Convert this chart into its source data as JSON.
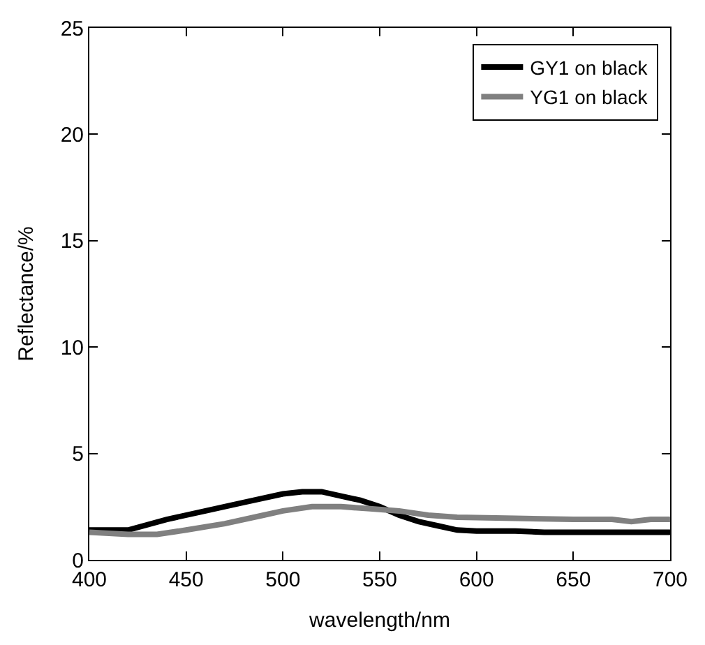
{
  "chart_data": {
    "type": "line",
    "xlabel": "wavelength/nm",
    "ylabel": "Reflectance/%",
    "xlim": [
      400,
      700
    ],
    "xticks": [
      400,
      450,
      500,
      550,
      600,
      650,
      700
    ],
    "ylim": [
      0,
      25
    ],
    "yticks": [
      0,
      5,
      10,
      15,
      20,
      25
    ],
    "legend": "top right",
    "marker": "none",
    "line_style": "solid",
    "series": [
      {
        "name": "GY1 on black",
        "color": "#000000",
        "x": [
          400,
          410,
          420,
          440,
          460,
          480,
          500,
          510,
          520,
          530,
          540,
          550,
          560,
          570,
          580,
          590,
          600,
          620,
          635,
          650,
          700
        ],
        "values": [
          1.4,
          1.4,
          1.4,
          1.9,
          2.3,
          2.7,
          3.1,
          3.2,
          3.2,
          3.0,
          2.8,
          2.5,
          2.1,
          1.8,
          1.6,
          1.4,
          1.35,
          1.35,
          1.3,
          1.3,
          1.3
        ]
      },
      {
        "name": "YG1 on black",
        "color": "#808080",
        "x": [
          400,
          420,
          435,
          450,
          470,
          490,
          500,
          515,
          530,
          545,
          560,
          575,
          590,
          620,
          650,
          670,
          680,
          690,
          700
        ],
        "values": [
          1.3,
          1.2,
          1.2,
          1.4,
          1.7,
          2.1,
          2.3,
          2.5,
          2.5,
          2.4,
          2.3,
          2.1,
          2.0,
          1.95,
          1.9,
          1.9,
          1.8,
          1.9,
          1.9
        ]
      }
    ]
  }
}
